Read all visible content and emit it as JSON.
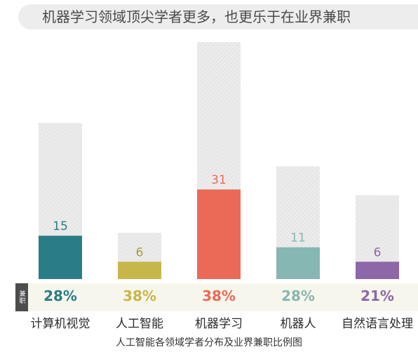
{
  "title": "机器学习领域顶尖学者更多，也更乐于在业界兼职",
  "side_label": "兼职",
  "caption": "人工智能各领域学者分布及业界兼职比例图",
  "chart_data": {
    "type": "bar",
    "categories": [
      "计算机视觉",
      "人工智能",
      "机器学习",
      "机器人",
      "自然语言处理"
    ],
    "series": [
      {
        "values": [
          54,
          16,
          82,
          39,
          29
        ]
      },
      {
        "values": [
          15,
          6,
          31,
          11,
          6
        ]
      }
    ],
    "percent_labels": [
      "28%",
      "38%",
      "38%",
      "28%",
      "21%"
    ],
    "colors": [
      "#2a7d87",
      "#c7b64a",
      "#ea6a57",
      "#86b7b2",
      "#8e67a8"
    ],
    "value_label_colors": [
      "#2a7d87",
      "#a89b3a",
      "#ea6a57",
      "#86b7b2",
      "#8e67a8"
    ],
    "total_bar_color": "#e6e6e6",
    "ylim": [
      0,
      82
    ]
  }
}
